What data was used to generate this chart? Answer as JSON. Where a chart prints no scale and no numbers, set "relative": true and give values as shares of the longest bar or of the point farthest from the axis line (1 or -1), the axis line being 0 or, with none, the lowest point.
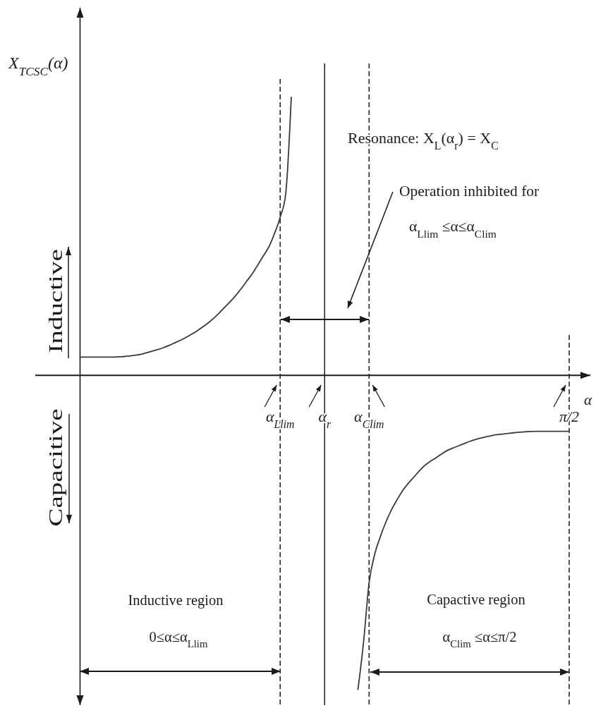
{
  "chart_data": {
    "type": "line",
    "relative": true,
    "ylabel": "X$_{TCSC}$(α)",
    "xlabel": "α",
    "categories": [
      null,
      null,
      null,
      null,
      null,
      null,
      null,
      null,
      null,
      null,
      null,
      null,
      null,
      null,
      null,
      null,
      null,
      null,
      null,
      null,
      null,
      null,
      null,
      null,
      null,
      null,
      null,
      null,
      null,
      null,
      null,
      null,
      null,
      null,
      null,
      null,
      "α$_{Llim}$",
      null,
      null,
      null,
      null,
      null,
      null,
      null,
      "α$_{r}$",
      null,
      null,
      null,
      null,
      null,
      null,
      null,
      "α$_{Clim}$",
      null,
      null,
      null,
      null,
      null,
      null,
      null,
      null,
      null,
      null,
      null,
      null,
      null,
      null,
      null,
      null,
      null,
      null,
      null,
      null,
      null,
      null,
      null,
      null,
      null,
      null,
      null,
      null,
      null,
      null,
      null,
      null,
      null,
      null,
      null,
      "π/2"
    ],
    "series": [
      {
        "color": "#3a3a3a",
        "values": [
          0.058,
          0.058,
          0.058,
          0.058,
          0.058,
          0.058,
          0.058,
          0.059,
          0.06,
          0.062,
          0.064,
          0.067,
          0.072,
          0.077,
          0.082,
          0.088,
          0.095,
          0.103,
          0.111,
          0.12,
          0.13,
          0.141,
          0.153,
          0.166,
          0.181,
          0.198,
          0.216,
          0.234,
          0.254,
          0.276,
          0.3,
          0.324,
          0.352,
          0.381,
          0.41,
          0.452,
          0.503,
          0.578,
          0.885,
          null,
          null,
          null,
          null,
          null,
          null,
          null,
          null,
          null,
          null,
          null,
          null,
          null,
          null,
          null,
          null,
          null,
          null,
          null,
          null,
          null,
          null,
          null,
          null,
          null,
          null,
          null,
          null,
          null,
          null,
          null,
          null,
          null,
          null,
          null,
          null,
          null,
          null,
          null,
          null,
          null,
          null,
          null,
          null,
          null,
          null,
          null,
          null,
          null,
          null
        ]
      },
      {
        "color": "#3a3a3a",
        "values": [
          null,
          null,
          null,
          null,
          null,
          null,
          null,
          null,
          null,
          null,
          null,
          null,
          null,
          null,
          null,
          null,
          null,
          null,
          null,
          null,
          null,
          null,
          null,
          null,
          null,
          null,
          null,
          null,
          null,
          null,
          null,
          null,
          null,
          null,
          null,
          null,
          null,
          null,
          null,
          null,
          null,
          null,
          null,
          null,
          null,
          null,
          null,
          null,
          null,
          null,
          -1,
          -0.85,
          -0.66,
          -0.57,
          -0.515,
          -0.468,
          -0.429,
          -0.397,
          -0.368,
          -0.345,
          -0.325,
          -0.305,
          -0.287,
          -0.274,
          -0.263,
          -0.251,
          -0.24,
          -0.232,
          -0.225,
          -0.218,
          -0.211,
          -0.205,
          -0.2,
          -0.196,
          -0.192,
          -0.189,
          -0.187,
          -0.185,
          -0.183,
          -0.181,
          -0.18,
          -0.179,
          -0.178,
          -0.178,
          -0.178,
          -0.178,
          -0.178,
          -0.178,
          -0.178
        ]
      }
    ],
    "ref_lines": [
      {
        "axis": "x",
        "value": "α$_{Llim}$",
        "line_style": "dashed"
      },
      {
        "axis": "x",
        "value": "α$_{r}$",
        "line_style": "solid"
      },
      {
        "axis": "x",
        "value": "α$_{Clim}$",
        "line_style": "dashed"
      },
      {
        "axis": "x",
        "value": "π/2",
        "line_style": "dashed"
      }
    ],
    "annotations": [
      "Resonance: X$_{L}$(α$_{r}$) = X$_{C}$",
      "Operation inhibited for\nα$_{Llim}$ ≤α≤α$_{Clim}$",
      "Inductive",
      "Capacitive",
      "Inductive region\n0≤α≤α$_{Llim}$",
      "Capactive region\nα$_{Clim}$ ≤α≤π/2"
    ]
  }
}
